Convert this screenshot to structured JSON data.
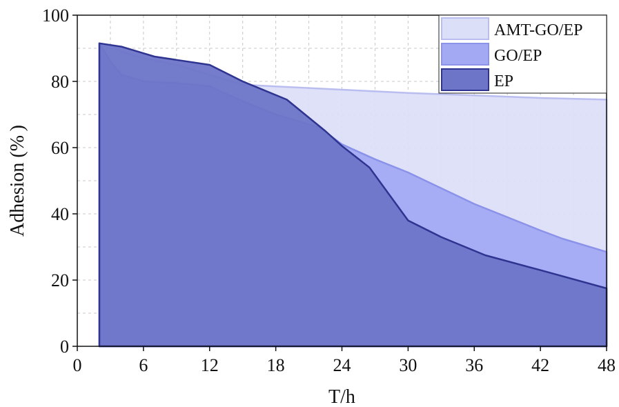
{
  "chart_data": {
    "type": "area",
    "xlabel": "T/h",
    "ylabel": "Adhesion (% )",
    "xlim": [
      0,
      48
    ],
    "ylim": [
      0,
      100
    ],
    "xticks": [
      0,
      6,
      12,
      18,
      24,
      30,
      36,
      42,
      48
    ],
    "yticks": [
      0,
      20,
      40,
      60,
      80,
      100
    ],
    "grid": true,
    "legend_position": "top-right",
    "series": [
      {
        "name": "AMT-GO/EP",
        "color": "#dcdff8",
        "edge_color": "#b9bdf0",
        "x": [
          2,
          2,
          3,
          4,
          6,
          9,
          12,
          15,
          18,
          24,
          30,
          36,
          42,
          48
        ],
        "y": [
          0,
          91.5,
          91,
          89,
          87,
          85,
          82,
          79,
          78.5,
          77.5,
          76.5,
          75.8,
          75,
          74.5
        ]
      },
      {
        "name": "GO/EP",
        "color": "#a3aaf3",
        "edge_color": "#8a92ea",
        "x": [
          2,
          2,
          3,
          4,
          6,
          9,
          12,
          15,
          18,
          22,
          24,
          27,
          30,
          36,
          42,
          44,
          48
        ],
        "y": [
          0,
          91.5,
          86,
          82,
          80,
          79.5,
          78.5,
          74,
          70,
          66,
          61,
          56.5,
          52.5,
          43,
          35,
          32.5,
          28.5
        ]
      },
      {
        "name": "EP",
        "color": "#6d75c8",
        "edge_color": "#2e3490",
        "x": [
          2,
          2,
          3,
          4,
          6,
          7,
          9,
          12,
          15,
          19,
          22.5,
          24,
          26.5,
          30,
          33,
          37,
          42,
          48
        ],
        "y": [
          0,
          91.5,
          91,
          90.5,
          88.5,
          87.5,
          86.5,
          85,
          80,
          74.5,
          65,
          60.5,
          54,
          38,
          33,
          27.5,
          23,
          17.5
        ]
      }
    ]
  }
}
